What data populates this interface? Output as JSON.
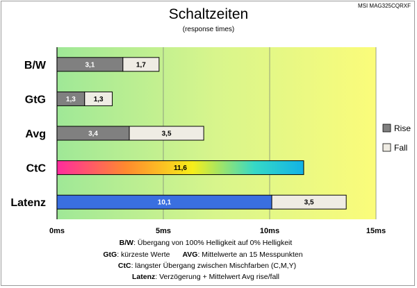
{
  "chart_data": {
    "type": "bar",
    "orientation": "horizontal",
    "stacked": true,
    "title": "Schaltzeiten",
    "subtitle": "(response times)",
    "model": "MSI MAG325CQRXF",
    "categories": [
      "B/W",
      "GtG",
      "Avg",
      "CtC",
      "Latenz"
    ],
    "series": [
      {
        "name": "Rise",
        "values": [
          3.1,
          1.3,
          3.4,
          null,
          10.1
        ],
        "labels": [
          "3,1",
          "1,3",
          "3,4",
          null,
          "10,1"
        ]
      },
      {
        "name": "Fall",
        "values": [
          1.7,
          1.3,
          3.5,
          null,
          3.5
        ],
        "labels": [
          "1,7",
          "1,3",
          "3,5",
          null,
          "3,5"
        ]
      }
    ],
    "special": [
      {
        "category": "CtC",
        "value": 11.6,
        "label": "11,6",
        "fill": "gradient-magenta-yellow-cyan"
      },
      {
        "category": "Latenz",
        "series": "Rise",
        "fill": "blue"
      }
    ],
    "xlim": [
      0,
      15
    ],
    "xticks": [
      0,
      5,
      10,
      15
    ],
    "xtick_labels": [
      "0ms",
      "5ms",
      "10ms",
      "15ms"
    ],
    "background": "gradient green to yellow",
    "grid": "vertical",
    "legend_position": "right",
    "colors": {
      "rise": "#808080",
      "fall": "#efece4",
      "latenz_rise": "#3a6fe0",
      "bg_start": "#9fe897",
      "bg_end": "#fbfc7a",
      "ctc_stops": [
        "#ff2b9e",
        "#ff8a2e",
        "#f7ee1a",
        "#36d9c6",
        "#12b2e6"
      ]
    }
  },
  "notes": [
    {
      "key": "B/W",
      "text": ":  Übergang von 100% Helligkeit auf 0% Helligkeit"
    },
    {
      "key": "GtG",
      "text": ": kürzeste  Werte"
    },
    {
      "key": "AVG",
      "text": ": Mittelwerte  an 15 Messpunkten"
    },
    {
      "key": "CtC",
      "text": ": längster Übergang  zwischen Mischfarben  (C,M,Y)"
    },
    {
      "key": "Latenz",
      "text": ": Verzögerung  + Mittelwert  Avg rise/fall"
    }
  ]
}
